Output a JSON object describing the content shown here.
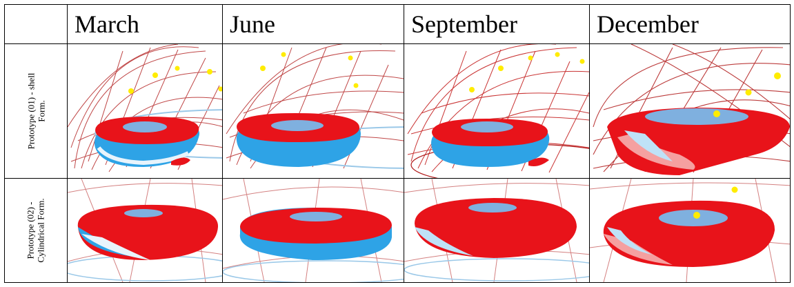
{
  "table": {
    "header": [
      "",
      "March",
      "June",
      "September",
      "December"
    ],
    "rows": [
      {
        "label_lines": [
          "Prototype (01) - shell",
          "Form."
        ]
      },
      {
        "label_lines": [
          "Prototype (02) -",
          "Cylindrical Form."
        ]
      }
    ]
  },
  "colors": {
    "shell_red": "#e8131a",
    "shell_blue": "#2ea3e6",
    "grid_red": "#b01818",
    "sun": "#ffec00"
  }
}
